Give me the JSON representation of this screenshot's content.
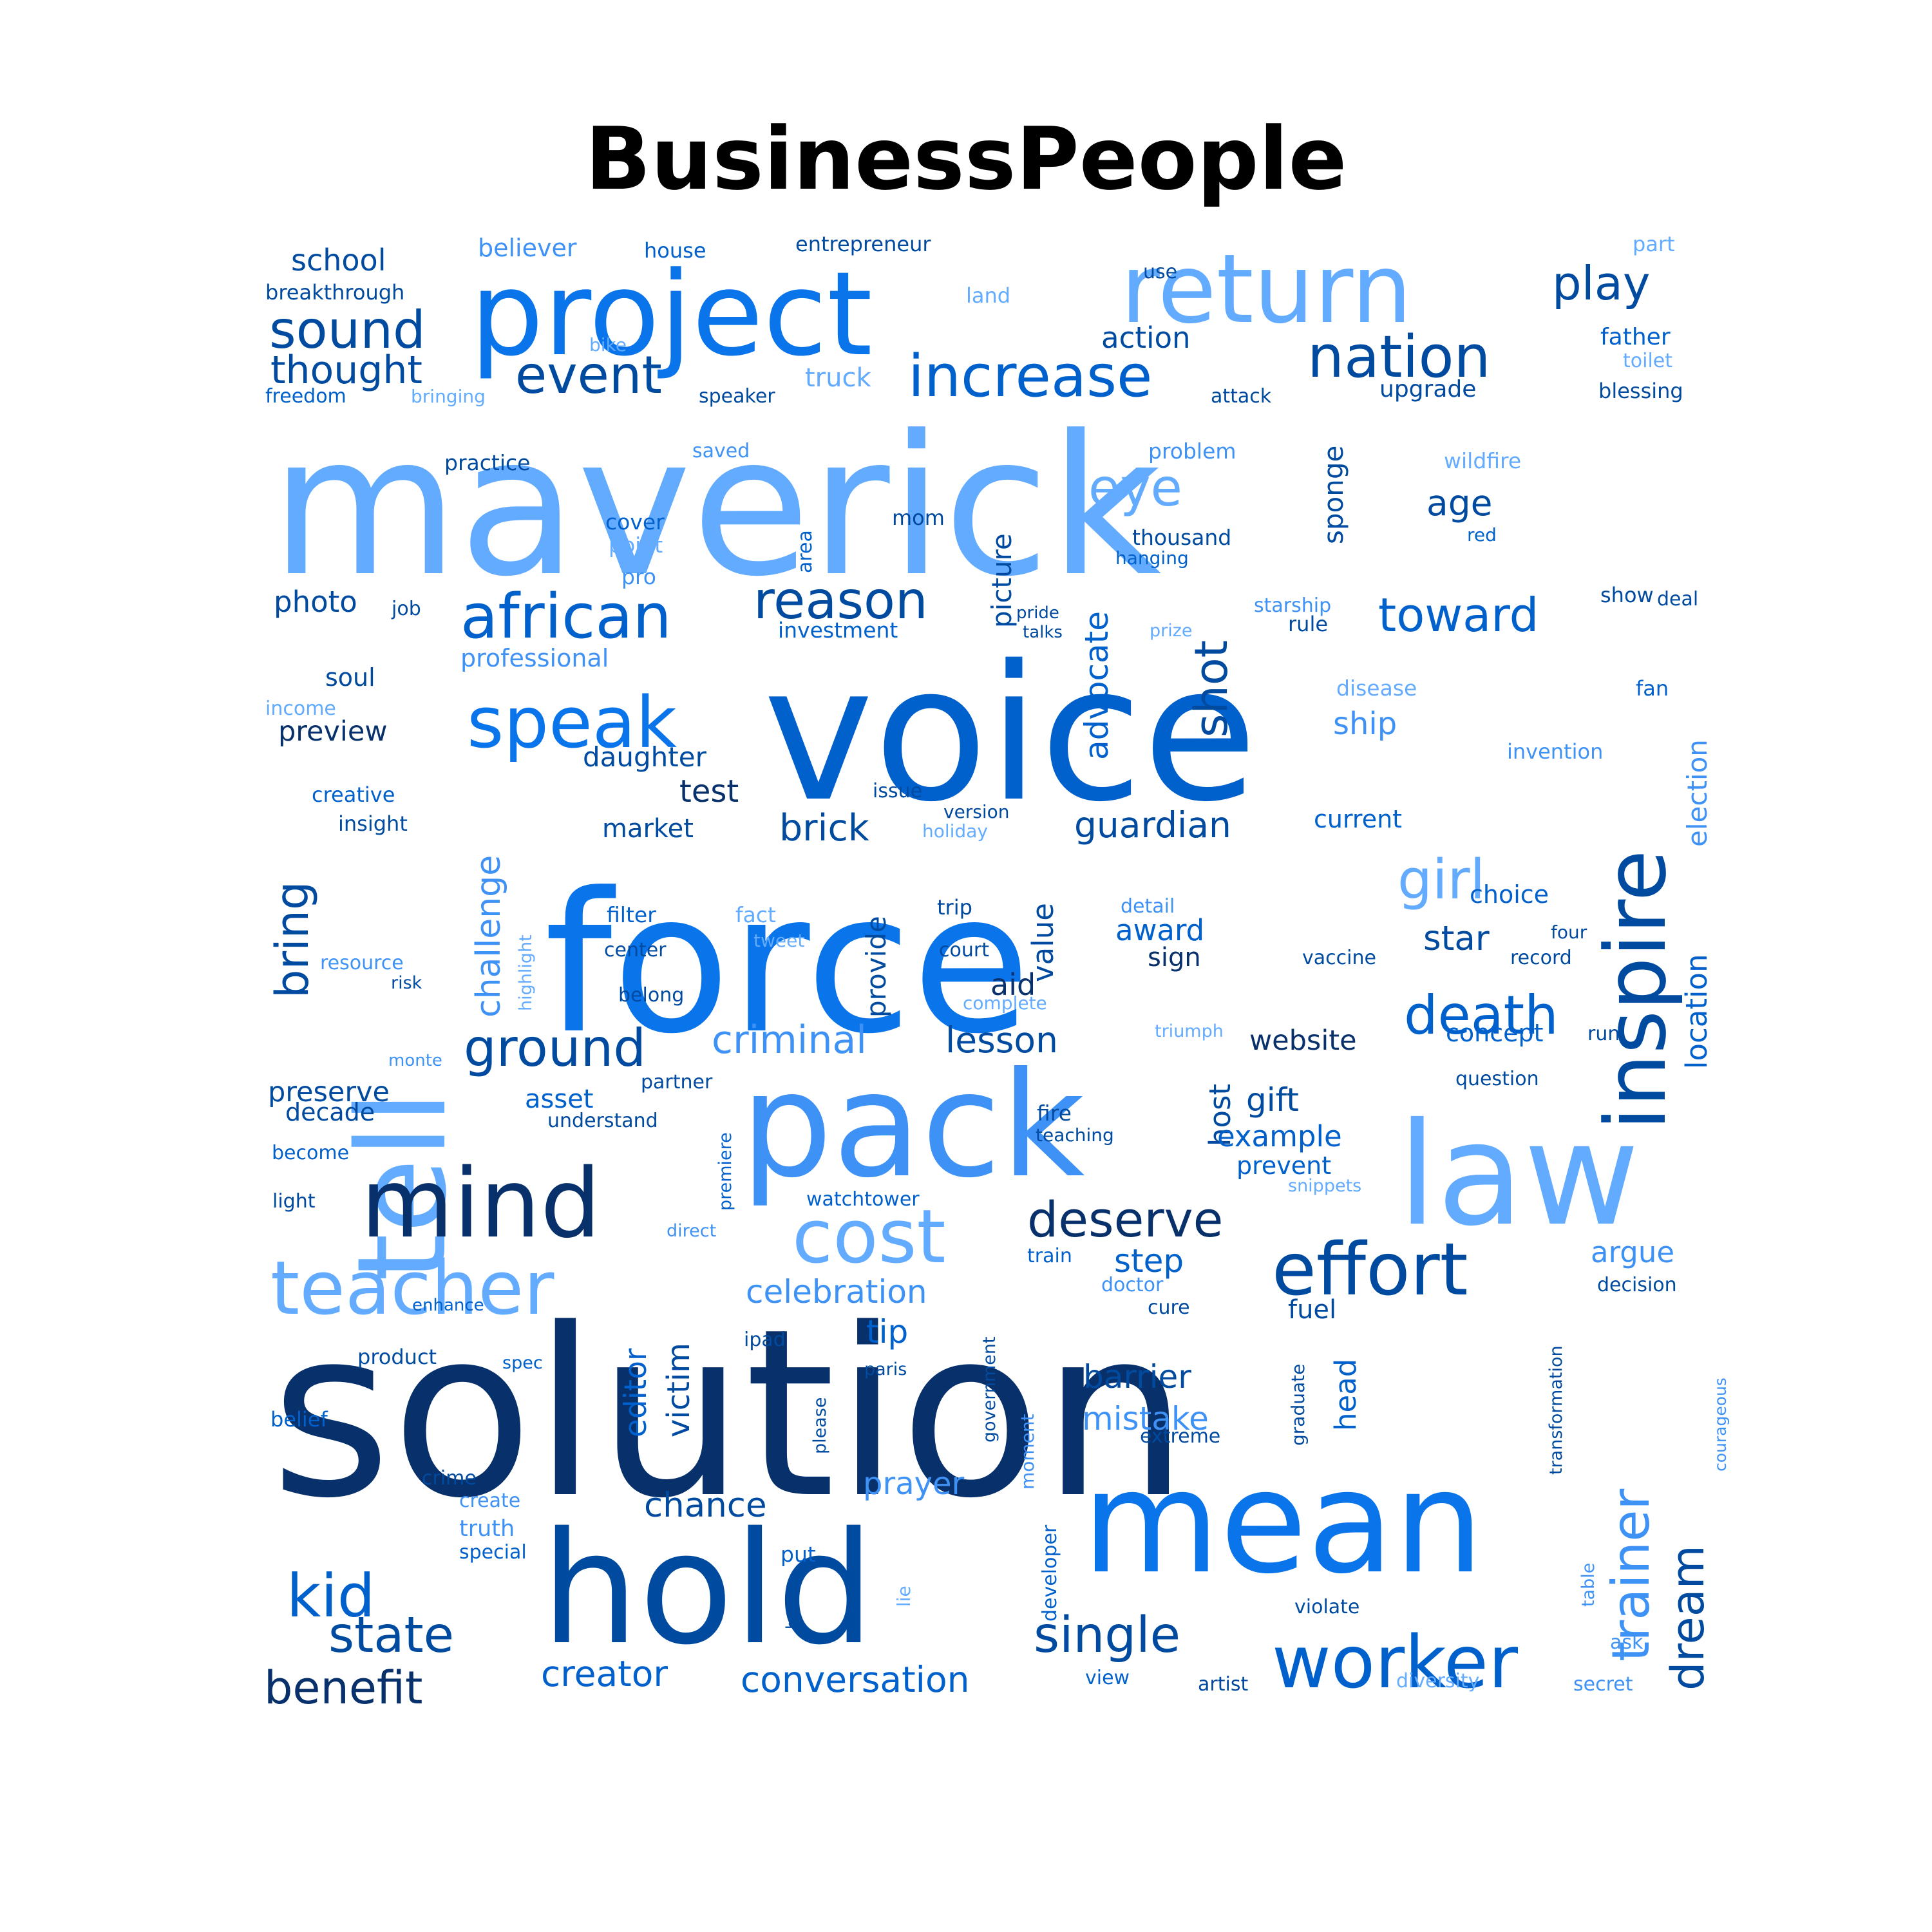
{
  "title": "BusinessPeople",
  "palette": {
    "navy": "#08306b",
    "dark": "#004a9f",
    "mid": "#0060cc",
    "bright": "#0a74ea",
    "sky": "#3f92f5",
    "light": "#62abff"
  },
  "words": [
    {
      "text": "solution",
      "color": "navy",
      "weight": 100
    },
    {
      "text": "maverick",
      "color": "light",
      "weight": 98
    },
    {
      "text": "voice",
      "color": "mid",
      "weight": 96
    },
    {
      "text": "force",
      "color": "bright",
      "weight": 95
    },
    {
      "text": "pack",
      "color": "sky",
      "weight": 78
    },
    {
      "text": "hold",
      "color": "dark",
      "weight": 77
    },
    {
      "text": "mean",
      "color": "bright",
      "weight": 76
    },
    {
      "text": "law",
      "color": "light",
      "weight": 74
    },
    {
      "text": "tell",
      "color": "light",
      "weight": 72
    },
    {
      "text": "project",
      "color": "bright",
      "weight": 65
    },
    {
      "text": "return",
      "color": "light",
      "weight": 58
    },
    {
      "text": "mind",
      "color": "navy",
      "weight": 58
    },
    {
      "text": "inspire",
      "color": "dark",
      "weight": 55
    },
    {
      "text": "worker",
      "color": "mid",
      "weight": 45
    },
    {
      "text": "effort",
      "color": "dark",
      "weight": 43
    },
    {
      "text": "teacher",
      "color": "light",
      "weight": 42
    },
    {
      "text": "cost",
      "color": "light",
      "weight": 42
    },
    {
      "text": "speak",
      "color": "bright",
      "weight": 40
    },
    {
      "text": "african",
      "color": "mid",
      "weight": 36
    },
    {
      "text": "nation",
      "color": "dark",
      "weight": 35
    },
    {
      "text": "increase",
      "color": "mid",
      "weight": 32
    },
    {
      "text": "kid",
      "color": "mid",
      "weight": 35
    },
    {
      "text": "death",
      "color": "mid",
      "weight": 33
    },
    {
      "text": "ground",
      "color": "dark",
      "weight": 30
    },
    {
      "text": "girl",
      "color": "light",
      "weight": 32
    },
    {
      "text": "trainer",
      "color": "sky",
      "weight": 32
    },
    {
      "text": "deserve",
      "color": "navy",
      "weight": 30
    },
    {
      "text": "state",
      "color": "dark",
      "weight": 29
    },
    {
      "text": "single",
      "color": "dark",
      "weight": 29
    },
    {
      "text": "benefit",
      "color": "navy",
      "weight": 27
    },
    {
      "text": "sound",
      "color": "dark",
      "weight": 29
    },
    {
      "text": "event",
      "color": "dark",
      "weight": 29
    },
    {
      "text": "reason",
      "color": "dark",
      "weight": 30
    },
    {
      "text": "toward",
      "color": "mid",
      "weight": 27
    },
    {
      "text": "dream",
      "color": "dark",
      "weight": 27
    },
    {
      "text": "shot",
      "color": "dark",
      "weight": 27
    },
    {
      "text": "bring",
      "color": "dark",
      "weight": 27
    },
    {
      "text": "play",
      "color": "dark",
      "weight": 27
    },
    {
      "text": "eye",
      "color": "light",
      "weight": 27
    },
    {
      "text": "thought",
      "color": "dark",
      "weight": 22
    },
    {
      "text": "criminal",
      "color": "sky",
      "weight": 22
    },
    {
      "text": "guardian",
      "color": "dark",
      "weight": 21
    },
    {
      "text": "celebration",
      "color": "sky",
      "weight": 19
    },
    {
      "text": "conversation",
      "color": "mid",
      "weight": 21
    },
    {
      "text": "creator",
      "color": "mid",
      "weight": 21
    },
    {
      "text": "lesson",
      "color": "dark",
      "weight": 21
    },
    {
      "text": "chance",
      "color": "dark",
      "weight": 20
    },
    {
      "text": "challenge",
      "color": "sky",
      "weight": 20
    },
    {
      "text": "advocate",
      "color": "mid",
      "weight": 19
    },
    {
      "text": "brick",
      "color": "dark",
      "weight": 21
    },
    {
      "text": "age",
      "color": "dark",
      "weight": 21
    },
    {
      "text": "location",
      "color": "mid",
      "weight": 17
    },
    {
      "text": "election",
      "color": "sky",
      "weight": 16
    },
    {
      "text": "step",
      "color": "mid",
      "weight": 19
    },
    {
      "text": "editor",
      "color": "mid",
      "weight": 18
    },
    {
      "text": "victim",
      "color": "dark",
      "weight": 18
    },
    {
      "text": "barrier",
      "color": "dark",
      "weight": 19
    },
    {
      "text": "mistake",
      "color": "sky",
      "weight": 19
    },
    {
      "text": "tip",
      "color": "mid",
      "weight": 19
    },
    {
      "text": "prayer",
      "color": "sky",
      "weight": 18
    },
    {
      "text": "head",
      "color": "mid",
      "weight": 17
    },
    {
      "text": "host",
      "color": "dark",
      "weight": 16
    },
    {
      "text": "gift",
      "color": "dark",
      "weight": 18
    },
    {
      "text": "example",
      "color": "mid",
      "weight": 17
    },
    {
      "text": "argue",
      "color": "sky",
      "weight": 17
    },
    {
      "text": "star",
      "color": "dark",
      "weight": 19
    },
    {
      "text": "award",
      "color": "mid",
      "weight": 17
    },
    {
      "text": "value",
      "color": "dark",
      "weight": 17
    },
    {
      "text": "provide",
      "color": "dark",
      "weight": 16
    },
    {
      "text": "picture",
      "color": "dark",
      "weight": 16
    },
    {
      "text": "sponge",
      "color": "dark",
      "weight": 16
    },
    {
      "text": "website",
      "color": "navy",
      "weight": 16
    },
    {
      "text": "photo",
      "color": "dark",
      "weight": 16
    },
    {
      "text": "preview",
      "color": "navy",
      "weight": 16
    },
    {
      "text": "school",
      "color": "dark",
      "weight": 16
    },
    {
      "text": "daughter",
      "color": "dark",
      "weight": 15
    },
    {
      "text": "test",
      "color": "navy",
      "weight": 16
    },
    {
      "text": "preserve",
      "color": "dark",
      "weight": 15
    },
    {
      "text": "asset",
      "color": "mid",
      "weight": 15
    },
    {
      "text": "action",
      "color": "dark",
      "weight": 15
    },
    {
      "text": "ship",
      "color": "sky",
      "weight": 15
    },
    {
      "text": "choice",
      "color": "mid",
      "weight": 14
    },
    {
      "text": "concept",
      "color": "mid",
      "weight": 14
    },
    {
      "text": "current",
      "color": "mid",
      "weight": 14
    },
    {
      "text": "prevent",
      "color": "mid",
      "weight": 14
    },
    {
      "text": "fuel",
      "color": "dark",
      "weight": 14
    },
    {
      "text": "upgrade",
      "color": "dark",
      "weight": 13
    },
    {
      "text": "father",
      "color": "mid",
      "weight": 13
    },
    {
      "text": "aid",
      "color": "navy",
      "weight": 15
    },
    {
      "text": "sign",
      "color": "navy",
      "weight": 14
    },
    {
      "text": "market",
      "color": "dark",
      "weight": 14
    },
    {
      "text": "professional",
      "color": "sky",
      "weight": 13
    },
    {
      "text": "soul",
      "color": "dark",
      "weight": 13
    },
    {
      "text": "decade",
      "color": "dark",
      "weight": 13
    },
    {
      "text": "believer",
      "color": "sky",
      "weight": 13
    },
    {
      "text": "breakthrough",
      "color": "dark",
      "weight": 11
    },
    {
      "text": "freedom",
      "color": "mid",
      "weight": 11
    },
    {
      "text": "bringing",
      "color": "light",
      "weight": 10
    },
    {
      "text": "speaker",
      "color": "dark",
      "weight": 11
    },
    {
      "text": "truck",
      "color": "light",
      "weight": 13
    },
    {
      "text": "house",
      "color": "mid",
      "weight": 11
    },
    {
      "text": "entrepreneur",
      "color": "dark",
      "weight": 11
    },
    {
      "text": "land",
      "color": "light",
      "weight": 11
    },
    {
      "text": "bike",
      "color": "light",
      "weight": 10
    },
    {
      "text": "use",
      "color": "dark",
      "weight": 11
    },
    {
      "text": "attack",
      "color": "dark",
      "weight": 11
    },
    {
      "text": "part",
      "color": "light",
      "weight": 11
    },
    {
      "text": "toilet",
      "color": "light",
      "weight": 11
    },
    {
      "text": "blessing",
      "color": "dark",
      "weight": 11
    },
    {
      "text": "practice",
      "color": "dark",
      "weight": 11
    },
    {
      "text": "saved",
      "color": "sky",
      "weight": 10
    },
    {
      "text": "problem",
      "color": "sky",
      "weight": 11
    },
    {
      "text": "wildfire",
      "color": "light",
      "weight": 11
    },
    {
      "text": "cover",
      "color": "mid",
      "weight": 11
    },
    {
      "text": "point",
      "color": "light",
      "weight": 11
    },
    {
      "text": "mom",
      "color": "dark",
      "weight": 11
    },
    {
      "text": "area",
      "color": "mid",
      "weight": 10
    },
    {
      "text": "thousand",
      "color": "dark",
      "weight": 11
    },
    {
      "text": "hanging",
      "color": "mid",
      "weight": 10
    },
    {
      "text": "red",
      "color": "mid",
      "weight": 10
    },
    {
      "text": "pro",
      "color": "sky",
      "weight": 11
    },
    {
      "text": "job",
      "color": "dark",
      "weight": 10
    },
    {
      "text": "investment",
      "color": "mid",
      "weight": 11
    },
    {
      "text": "pride",
      "color": "dark",
      "weight": 9
    },
    {
      "text": "talks",
      "color": "dark",
      "weight": 9
    },
    {
      "text": "prize",
      "color": "light",
      "weight": 9
    },
    {
      "text": "starship",
      "color": "sky",
      "weight": 11
    },
    {
      "text": "rule",
      "color": "dark",
      "weight": 11
    },
    {
      "text": "show",
      "color": "dark",
      "weight": 11
    },
    {
      "text": "deal",
      "color": "dark",
      "weight": 10
    },
    {
      "text": "disease",
      "color": "light",
      "weight": 11
    },
    {
      "text": "fan",
      "color": "mid",
      "weight": 11
    },
    {
      "text": "invention",
      "color": "sky",
      "weight": 11
    },
    {
      "text": "income",
      "color": "light",
      "weight": 10
    },
    {
      "text": "creative",
      "color": "mid",
      "weight": 11
    },
    {
      "text": "insight",
      "color": "dark",
      "weight": 11
    },
    {
      "text": "issue",
      "color": "dark",
      "weight": 10
    },
    {
      "text": "version",
      "color": "dark",
      "weight": 10
    },
    {
      "text": "holiday",
      "color": "light",
      "weight": 10
    },
    {
      "text": "highlight",
      "color": "light",
      "weight": 9
    },
    {
      "text": "resource",
      "color": "sky",
      "weight": 10
    },
    {
      "text": "risk",
      "color": "dark",
      "weight": 9
    },
    {
      "text": "filter",
      "color": "mid",
      "weight": 11
    },
    {
      "text": "fact",
      "color": "light",
      "weight": 11
    },
    {
      "text": "tweet",
      "color": "light",
      "weight": 10
    },
    {
      "text": "trip",
      "color": "dark",
      "weight": 11
    },
    {
      "text": "center",
      "color": "dark",
      "weight": 10
    },
    {
      "text": "court",
      "color": "dark",
      "weight": 10
    },
    {
      "text": "detail",
      "color": "sky",
      "weight": 10
    },
    {
      "text": "four",
      "color": "dark",
      "weight": 9
    },
    {
      "text": "record",
      "color": "dark",
      "weight": 10
    },
    {
      "text": "vaccine",
      "color": "dark",
      "weight": 10
    },
    {
      "text": "belong",
      "color": "dark",
      "weight": 10
    },
    {
      "text": "complete",
      "color": "light",
      "weight": 10
    },
    {
      "text": "triumph",
      "color": "light",
      "weight": 9
    },
    {
      "text": "run",
      "color": "dark",
      "weight": 10
    },
    {
      "text": "question",
      "color": "dark",
      "weight": 10
    },
    {
      "text": "monte",
      "color": "sky",
      "weight": 9
    },
    {
      "text": "partner",
      "color": "dark",
      "weight": 10
    },
    {
      "text": "understand",
      "color": "dark",
      "weight": 10
    },
    {
      "text": "premiere",
      "color": "mid",
      "weight": 9
    },
    {
      "text": "fire",
      "color": "dark",
      "weight": 11
    },
    {
      "text": "teaching",
      "color": "dark",
      "weight": 9
    },
    {
      "text": "become",
      "color": "mid",
      "weight": 10
    },
    {
      "text": "light",
      "color": "dark",
      "weight": 10
    },
    {
      "text": "watchtower",
      "color": "mid",
      "weight": 10
    },
    {
      "text": "snippets",
      "color": "light",
      "weight": 9
    },
    {
      "text": "direct",
      "color": "sky",
      "weight": 9
    },
    {
      "text": "train",
      "color": "mid",
      "weight": 10
    },
    {
      "text": "doctor",
      "color": "sky",
      "weight": 10
    },
    {
      "text": "cure",
      "color": "dark",
      "weight": 10
    },
    {
      "text": "decision",
      "color": "dark",
      "weight": 10
    },
    {
      "text": "enhance",
      "color": "mid",
      "weight": 9
    },
    {
      "text": "transformation",
      "color": "dark",
      "weight": 9
    },
    {
      "text": "product",
      "color": "dark",
      "weight": 10
    },
    {
      "text": "spec",
      "color": "mid",
      "weight": 9
    },
    {
      "text": "ipad",
      "color": "dark",
      "weight": 10
    },
    {
      "text": "paris",
      "color": "dark",
      "weight": 9
    },
    {
      "text": "government",
      "color": "dark",
      "weight": 9
    },
    {
      "text": "graduate",
      "color": "dark",
      "weight": 9
    },
    {
      "text": "courageous",
      "color": "sky",
      "weight": 8
    },
    {
      "text": "belief",
      "color": "mid",
      "weight": 10
    },
    {
      "text": "please",
      "color": "dark",
      "weight": 9
    },
    {
      "text": "moment",
      "color": "sky",
      "weight": 9
    },
    {
      "text": "extreme",
      "color": "dark",
      "weight": 10
    },
    {
      "text": "crime",
      "color": "dark",
      "weight": 10
    },
    {
      "text": "create",
      "color": "sky",
      "weight": 10
    },
    {
      "text": "truth",
      "color": "sky",
      "weight": 11
    },
    {
      "text": "special",
      "color": "mid",
      "weight": 10
    },
    {
      "text": "put",
      "color": "mid",
      "weight": 11
    },
    {
      "text": "developer",
      "color": "mid",
      "weight": 10
    },
    {
      "text": "hate",
      "color": "dark",
      "weight": 8
    },
    {
      "text": "lie",
      "color": "light",
      "weight": 9
    },
    {
      "text": "table",
      "color": "sky",
      "weight": 9
    },
    {
      "text": "violate",
      "color": "dark",
      "weight": 10
    },
    {
      "text": "ask",
      "color": "sky",
      "weight": 10
    },
    {
      "text": "view",
      "color": "mid",
      "weight": 10
    },
    {
      "text": "artist",
      "color": "dark",
      "weight": 10
    },
    {
      "text": "diversity",
      "color": "light",
      "weight": 10
    },
    {
      "text": "secret",
      "color": "sky",
      "weight": 10
    }
  ]
}
